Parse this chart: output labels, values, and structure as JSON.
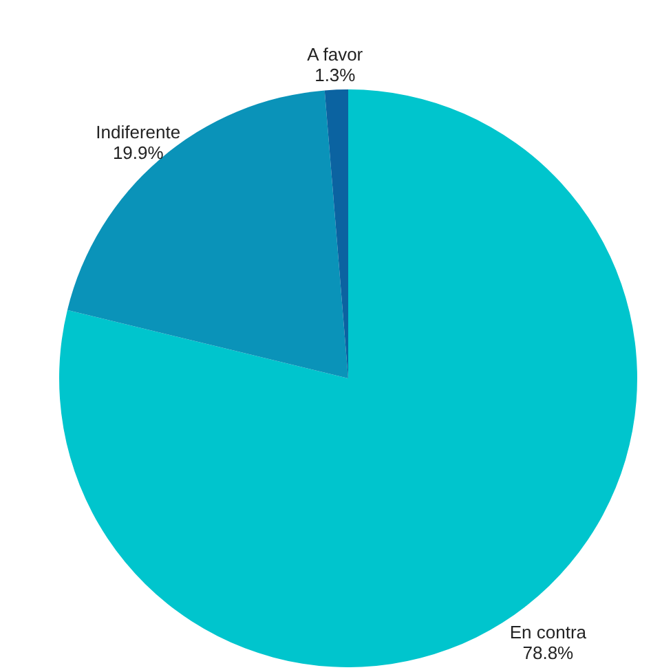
{
  "chart_data": {
    "type": "pie",
    "categories": [
      "En contra",
      "Indiferente",
      "A favor"
    ],
    "values": [
      78.8,
      19.9,
      1.3
    ],
    "value_labels": [
      "78.8%",
      "19.9%",
      "1.3%"
    ],
    "colors": [
      "#00c5cd",
      "#0a93b9",
      "#0b63a1"
    ]
  }
}
